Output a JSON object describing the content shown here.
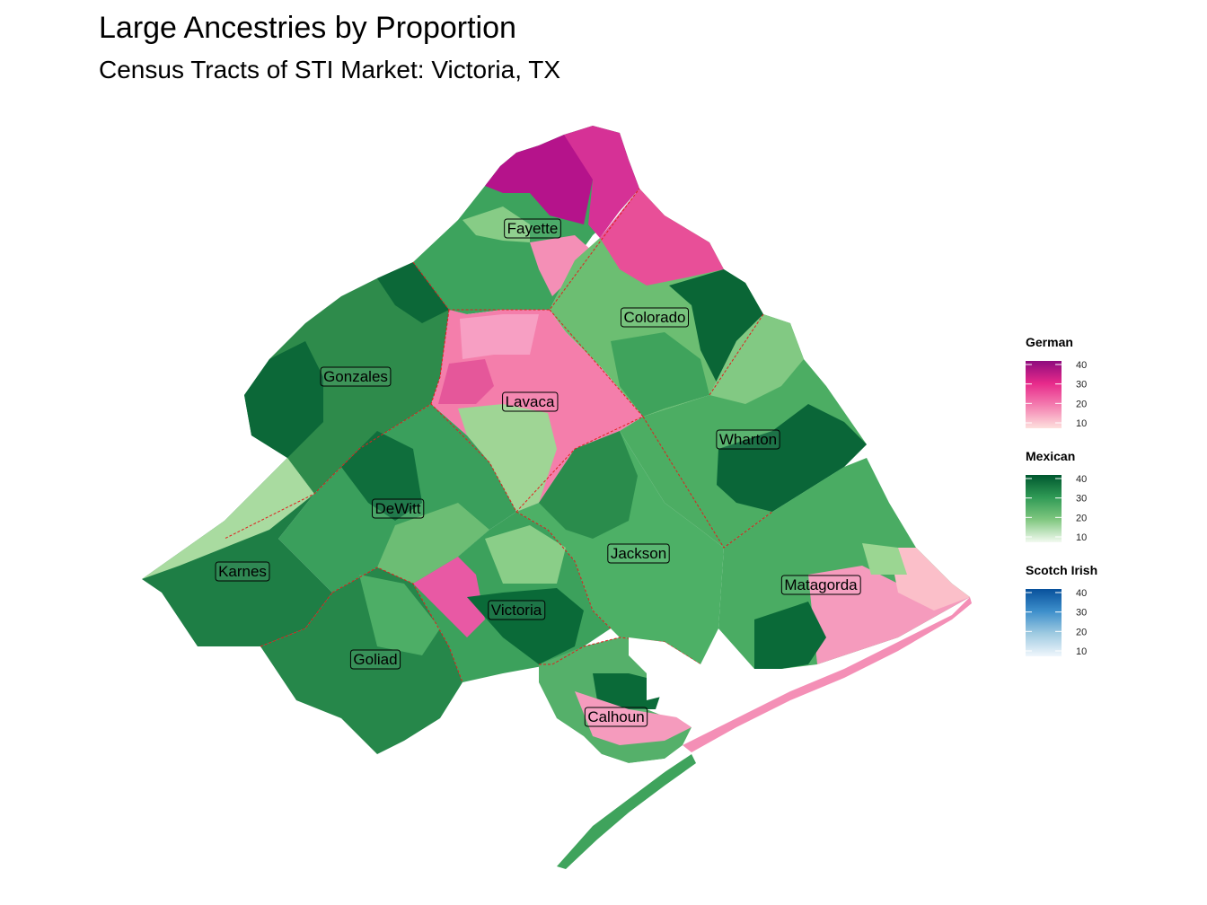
{
  "title": "Large Ancestries by Proportion",
  "subtitle": "Census Tracts of STI Market: Victoria, TX",
  "counties": [
    {
      "name": "Fayette",
      "ancestry": "German",
      "level": 35
    },
    {
      "name": "Colorado",
      "ancestry": "Mexican",
      "level": 24
    },
    {
      "name": "Gonzales",
      "ancestry": "Mexican",
      "level": 36
    },
    {
      "name": "Lavaca",
      "ancestry": "German",
      "level": 24
    },
    {
      "name": "Wharton",
      "ancestry": "Mexican",
      "level": 30
    },
    {
      "name": "DeWitt",
      "ancestry": "Mexican",
      "level": 32
    },
    {
      "name": "Karnes",
      "ancestry": "Mexican",
      "level": 38
    },
    {
      "name": "Jackson",
      "ancestry": "Mexican",
      "level": 28
    },
    {
      "name": "Victoria",
      "ancestry": "Mexican",
      "level": 36
    },
    {
      "name": "Matagorda",
      "ancestry": "German",
      "level": 18
    },
    {
      "name": "Goliad",
      "ancestry": "Mexican",
      "level": 34
    },
    {
      "name": "Calhoun",
      "ancestry": "Mexican",
      "level": 30
    }
  ],
  "legends": [
    {
      "title": "German",
      "ticks": [
        "40",
        "30",
        "20",
        "10"
      ],
      "colors": [
        "#8e0c7e",
        "#e7298a",
        "#f47eb0",
        "#fde0dd"
      ]
    },
    {
      "title": "Mexican",
      "ticks": [
        "40",
        "30",
        "20",
        "10"
      ],
      "colors": [
        "#00582f",
        "#2f9a55",
        "#7fc77f",
        "#f2faf0"
      ]
    },
    {
      "title": "Scotch Irish",
      "ticks": [
        "40",
        "30",
        "20",
        "10"
      ],
      "colors": [
        "#08519c",
        "#3d8fcb",
        "#9ecae1",
        "#f0f6fc"
      ]
    }
  ]
}
